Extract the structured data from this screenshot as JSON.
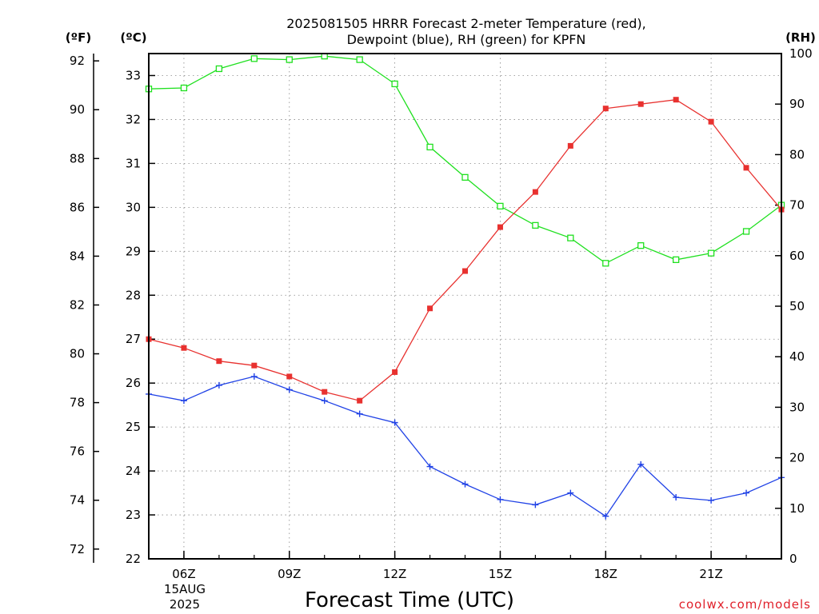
{
  "chart_data": {
    "type": "line",
    "title": [
      "2025081505 HRRR Forecast 2-meter Temperature (red),",
      "Dewpoint (blue), RH (green) for KPFN"
    ],
    "xlabel": "Forecast Time (UTC)",
    "watermark": "coolwx.com/models",
    "date_labels": [
      "15AUG",
      "2025"
    ],
    "x_ticks": [
      "06Z",
      "09Z",
      "12Z",
      "15Z",
      "18Z",
      "21Z"
    ],
    "x_tick_hours": [
      6,
      9,
      12,
      15,
      18,
      21
    ],
    "x_range_hours": [
      5,
      23
    ],
    "x_hours": [
      5,
      6,
      7,
      8,
      9,
      10,
      11,
      12,
      13,
      14,
      15,
      16,
      17,
      18,
      19,
      20,
      21,
      22,
      23
    ],
    "axes": {
      "fahrenheit": {
        "unit": "(ºF)",
        "range": [
          71.6,
          92.3
        ],
        "ticks": [
          72,
          74,
          76,
          78,
          80,
          82,
          84,
          86,
          88,
          90,
          92
        ]
      },
      "celsius": {
        "unit": "(ºC)",
        "range": [
          22,
          33.5
        ],
        "ticks": [
          22,
          23,
          24,
          25,
          26,
          27,
          28,
          29,
          30,
          31,
          32,
          33
        ]
      },
      "rh": {
        "unit": "(RH)",
        "range": [
          0,
          100
        ],
        "ticks": [
          0,
          10,
          20,
          30,
          40,
          50,
          60,
          70,
          80,
          90,
          100
        ]
      }
    },
    "grid": true,
    "series": [
      {
        "name": "Temperature",
        "color": "#e8312f",
        "axis": "celsius",
        "marker": "filled-square",
        "values": [
          27.0,
          26.8,
          26.5,
          26.4,
          26.15,
          25.8,
          25.6,
          26.25,
          27.7,
          28.55,
          29.55,
          30.35,
          31.4,
          32.25,
          32.35,
          32.45,
          31.95,
          30.9,
          29.95
        ]
      },
      {
        "name": "Dewpoint",
        "color": "#2042e6",
        "axis": "celsius",
        "marker": "plus",
        "values": [
          25.75,
          25.6,
          25.95,
          26.15,
          25.85,
          25.6,
          25.3,
          25.1,
          24.1,
          23.7,
          23.35,
          23.23,
          23.5,
          22.97,
          24.15,
          23.4,
          23.33,
          23.5,
          23.85
        ]
      },
      {
        "name": "RH",
        "color": "#1fe01f",
        "axis": "rh",
        "marker": "open-square",
        "values": [
          93,
          93.2,
          97,
          99,
          98.8,
          99.5,
          98.8,
          94,
          81.5,
          75.5,
          69.8,
          66,
          63.5,
          58.5,
          62,
          59.2,
          60.5,
          64.8,
          70
        ]
      }
    ]
  }
}
